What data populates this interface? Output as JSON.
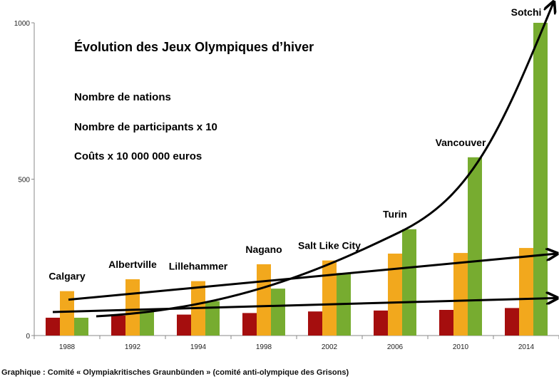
{
  "chart_data": {
    "type": "bar",
    "title": "Évolution des Jeux Olympiques d’hiver",
    "categories": [
      "1988",
      "1992",
      "1994",
      "1998",
      "2002",
      "2006",
      "2010",
      "2014"
    ],
    "cities": [
      "Calgary",
      "Albertville",
      "Lillehammer",
      "Nagano",
      "Salt Like City",
      "Turin",
      "Vancouver",
      "Sotchi"
    ],
    "ylim": [
      0,
      1000
    ],
    "yticks": [
      0,
      500,
      1000
    ],
    "series": [
      {
        "name": "Nombre de nations",
        "color": "#A50E0E",
        "values": [
          57,
          64,
          67,
          72,
          77,
          80,
          82,
          88
        ]
      },
      {
        "name": "Nombre de participants x 10",
        "color": "#F2A81D",
        "values": [
          142,
          180,
          174,
          228,
          240,
          262,
          264,
          280
        ]
      },
      {
        "name": "Coûts x 10 000 000 euros",
        "color": "#77AC30",
        "values": [
          57,
          80,
          110,
          150,
          200,
          340,
          570,
          1000
        ]
      }
    ],
    "trend_arrows": [
      {
        "follows": "Nombre de nations",
        "shape": "linear"
      },
      {
        "follows": "Nombre de participants x 10",
        "shape": "linear"
      },
      {
        "follows": "Coûts x 10 000 000 euros",
        "shape": "exponential"
      }
    ],
    "xlabel": "",
    "ylabel": "",
    "grid": false
  },
  "caption": "Graphique : Comité « Olympiakritisches Graunbünden » (comité anti-olympique des Grisons)"
}
